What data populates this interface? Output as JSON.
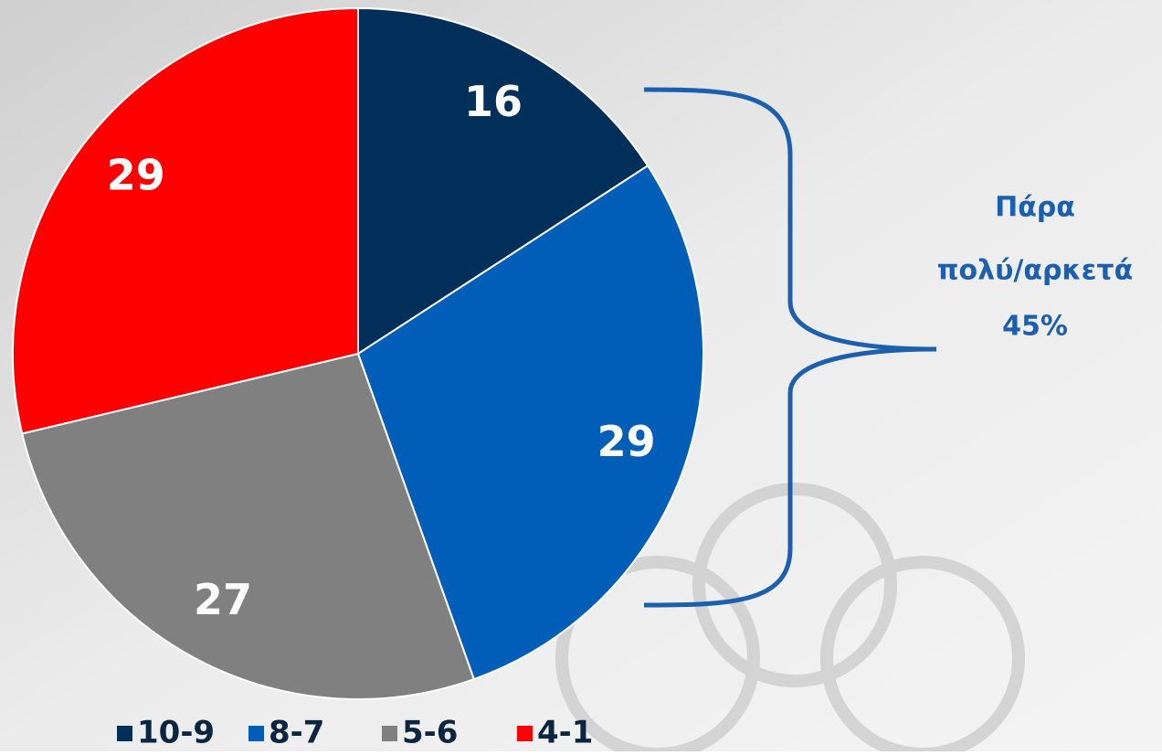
{
  "chart_data": {
    "type": "pie",
    "categories": [
      "10-9",
      "8-7",
      "5-6",
      "4-1"
    ],
    "values": [
      16,
      29,
      27,
      29
    ],
    "colors": [
      "#002f5a",
      "#005eb8",
      "#808080",
      "#ff0000"
    ],
    "annotation": [
      "Πάρα",
      "πολύ/αρκετά",
      "45%"
    ],
    "legend": "bottom"
  }
}
